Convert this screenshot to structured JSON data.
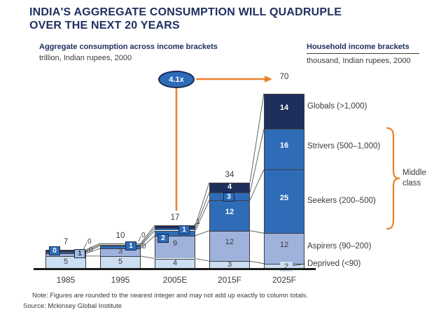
{
  "title": {
    "line1": "INDIA'S AGGREGATE CONSUMPTION WILL QUADRUPLE",
    "line2": "OVER THE NEXT 20 YEARS"
  },
  "left_panel": {
    "heading": "Aggregate consumption across income brackets",
    "unit": "trillion, Indian rupees, 2000"
  },
  "right_panel": {
    "heading": "Household income brackets",
    "unit": "thousand, Indian rupees, 2000"
  },
  "growth_annotation": {
    "label": "4.1x"
  },
  "chart_data": {
    "type": "bar",
    "stacked": true,
    "title": "Aggregate consumption across income brackets",
    "unit_label": "trillion, Indian rupees, 2000",
    "categories": [
      "1985",
      "1995",
      "2005E",
      "2015F",
      "2025F"
    ],
    "totals": [
      7,
      10,
      17,
      34,
      70
    ],
    "series": [
      {
        "name": "Deprived (<90)",
        "values": [
          5,
          5,
          4,
          3,
          2
        ],
        "color": "#CBDEF2",
        "label_color": "#3a3a3a"
      },
      {
        "name": "Aspirers (90–200)",
        "values": [
          1,
          3,
          9,
          12,
          12
        ],
        "color": "#9FB2DC",
        "label_color": "#3a3a3a"
      },
      {
        "name": "Seekers (200–500)",
        "values": [
          0,
          1,
          2,
          12,
          25
        ],
        "color": "#2E6CB8",
        "label_color": "#ffffff"
      },
      {
        "name": "Strivers (500–1,000)",
        "values": [
          0,
          0,
          1,
          3,
          16
        ],
        "color": "#2E6CB8",
        "label_color": "#ffffff"
      },
      {
        "name": "Globals (>1,000)",
        "values": [
          0,
          0,
          1,
          4,
          14
        ],
        "color": "#1F2F5C",
        "label_color": "#ffffff"
      }
    ],
    "legend_position": "right",
    "grid": false,
    "ylim": [
      0,
      70
    ],
    "growth_multiple": "4.1x",
    "brace_label": "Middle class",
    "brace_series": [
      "Strivers (500–1,000)",
      "Seekers (200–500)"
    ]
  },
  "footer": {
    "note": "Note: Figures are rounded to the nearest integer and may not add up exactly to column totals.",
    "source": "Source: Mckinsey Global Institute"
  },
  "colors": {
    "navy": "#1F3060",
    "blue": "#2E6CB8",
    "light_blue": "#9FB2DC",
    "pale_blue": "#CBDEF2",
    "orange": "#E8832B",
    "text": "#3a3a3a"
  }
}
